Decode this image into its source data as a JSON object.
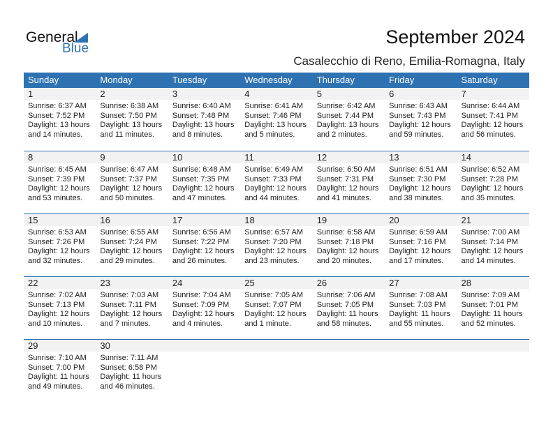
{
  "logo": {
    "general": "General",
    "blue": "Blue"
  },
  "title": "September 2024",
  "location": "Casalecchio di Reno, Emilia-Romagna, Italy",
  "colors": {
    "header": "#2e72b2",
    "accent": "#2e74b5",
    "date_band": "#f2f2f2"
  },
  "weekdays": [
    "Sunday",
    "Monday",
    "Tuesday",
    "Wednesday",
    "Thursday",
    "Friday",
    "Saturday"
  ],
  "days": [
    {
      "day": "1",
      "sunrise": "Sunrise: 6:37 AM",
      "sunset": "Sunset: 7:52 PM",
      "daylight1": "Daylight: 13 hours",
      "daylight2": "and 14 minutes."
    },
    {
      "day": "2",
      "sunrise": "Sunrise: 6:38 AM",
      "sunset": "Sunset: 7:50 PM",
      "daylight1": "Daylight: 13 hours",
      "daylight2": "and 11 minutes."
    },
    {
      "day": "3",
      "sunrise": "Sunrise: 6:40 AM",
      "sunset": "Sunset: 7:48 PM",
      "daylight1": "Daylight: 13 hours",
      "daylight2": "and 8 minutes."
    },
    {
      "day": "4",
      "sunrise": "Sunrise: 6:41 AM",
      "sunset": "Sunset: 7:46 PM",
      "daylight1": "Daylight: 13 hours",
      "daylight2": "and 5 minutes."
    },
    {
      "day": "5",
      "sunrise": "Sunrise: 6:42 AM",
      "sunset": "Sunset: 7:44 PM",
      "daylight1": "Daylight: 13 hours",
      "daylight2": "and 2 minutes."
    },
    {
      "day": "6",
      "sunrise": "Sunrise: 6:43 AM",
      "sunset": "Sunset: 7:43 PM",
      "daylight1": "Daylight: 12 hours",
      "daylight2": "and 59 minutes."
    },
    {
      "day": "7",
      "sunrise": "Sunrise: 6:44 AM",
      "sunset": "Sunset: 7:41 PM",
      "daylight1": "Daylight: 12 hours",
      "daylight2": "and 56 minutes."
    },
    {
      "day": "8",
      "sunrise": "Sunrise: 6:45 AM",
      "sunset": "Sunset: 7:39 PM",
      "daylight1": "Daylight: 12 hours",
      "daylight2": "and 53 minutes."
    },
    {
      "day": "9",
      "sunrise": "Sunrise: 6:47 AM",
      "sunset": "Sunset: 7:37 PM",
      "daylight1": "Daylight: 12 hours",
      "daylight2": "and 50 minutes."
    },
    {
      "day": "10",
      "sunrise": "Sunrise: 6:48 AM",
      "sunset": "Sunset: 7:35 PM",
      "daylight1": "Daylight: 12 hours",
      "daylight2": "and 47 minutes."
    },
    {
      "day": "11",
      "sunrise": "Sunrise: 6:49 AM",
      "sunset": "Sunset: 7:33 PM",
      "daylight1": "Daylight: 12 hours",
      "daylight2": "and 44 minutes."
    },
    {
      "day": "12",
      "sunrise": "Sunrise: 6:50 AM",
      "sunset": "Sunset: 7:31 PM",
      "daylight1": "Daylight: 12 hours",
      "daylight2": "and 41 minutes."
    },
    {
      "day": "13",
      "sunrise": "Sunrise: 6:51 AM",
      "sunset": "Sunset: 7:30 PM",
      "daylight1": "Daylight: 12 hours",
      "daylight2": "and 38 minutes."
    },
    {
      "day": "14",
      "sunrise": "Sunrise: 6:52 AM",
      "sunset": "Sunset: 7:28 PM",
      "daylight1": "Daylight: 12 hours",
      "daylight2": "and 35 minutes."
    },
    {
      "day": "15",
      "sunrise": "Sunrise: 6:53 AM",
      "sunset": "Sunset: 7:26 PM",
      "daylight1": "Daylight: 12 hours",
      "daylight2": "and 32 minutes."
    },
    {
      "day": "16",
      "sunrise": "Sunrise: 6:55 AM",
      "sunset": "Sunset: 7:24 PM",
      "daylight1": "Daylight: 12 hours",
      "daylight2": "and 29 minutes."
    },
    {
      "day": "17",
      "sunrise": "Sunrise: 6:56 AM",
      "sunset": "Sunset: 7:22 PM",
      "daylight1": "Daylight: 12 hours",
      "daylight2": "and 26 minutes."
    },
    {
      "day": "18",
      "sunrise": "Sunrise: 6:57 AM",
      "sunset": "Sunset: 7:20 PM",
      "daylight1": "Daylight: 12 hours",
      "daylight2": "and 23 minutes."
    },
    {
      "day": "19",
      "sunrise": "Sunrise: 6:58 AM",
      "sunset": "Sunset: 7:18 PM",
      "daylight1": "Daylight: 12 hours",
      "daylight2": "and 20 minutes."
    },
    {
      "day": "20",
      "sunrise": "Sunrise: 6:59 AM",
      "sunset": "Sunset: 7:16 PM",
      "daylight1": "Daylight: 12 hours",
      "daylight2": "and 17 minutes."
    },
    {
      "day": "21",
      "sunrise": "Sunrise: 7:00 AM",
      "sunset": "Sunset: 7:14 PM",
      "daylight1": "Daylight: 12 hours",
      "daylight2": "and 14 minutes."
    },
    {
      "day": "22",
      "sunrise": "Sunrise: 7:02 AM",
      "sunset": "Sunset: 7:13 PM",
      "daylight1": "Daylight: 12 hours",
      "daylight2": "and 10 minutes."
    },
    {
      "day": "23",
      "sunrise": "Sunrise: 7:03 AM",
      "sunset": "Sunset: 7:11 PM",
      "daylight1": "Daylight: 12 hours",
      "daylight2": "and 7 minutes."
    },
    {
      "day": "24",
      "sunrise": "Sunrise: 7:04 AM",
      "sunset": "Sunset: 7:09 PM",
      "daylight1": "Daylight: 12 hours",
      "daylight2": "and 4 minutes."
    },
    {
      "day": "25",
      "sunrise": "Sunrise: 7:05 AM",
      "sunset": "Sunset: 7:07 PM",
      "daylight1": "Daylight: 12 hours",
      "daylight2": "and 1 minute."
    },
    {
      "day": "26",
      "sunrise": "Sunrise: 7:06 AM",
      "sunset": "Sunset: 7:05 PM",
      "daylight1": "Daylight: 11 hours",
      "daylight2": "and 58 minutes."
    },
    {
      "day": "27",
      "sunrise": "Sunrise: 7:08 AM",
      "sunset": "Sunset: 7:03 PM",
      "daylight1": "Daylight: 11 hours",
      "daylight2": "and 55 minutes."
    },
    {
      "day": "28",
      "sunrise": "Sunrise: 7:09 AM",
      "sunset": "Sunset: 7:01 PM",
      "daylight1": "Daylight: 11 hours",
      "daylight2": "and 52 minutes."
    },
    {
      "day": "29",
      "sunrise": "Sunrise: 7:10 AM",
      "sunset": "Sunset: 7:00 PM",
      "daylight1": "Daylight: 11 hours",
      "daylight2": "and 49 minutes."
    },
    {
      "day": "30",
      "sunrise": "Sunrise: 7:11 AM",
      "sunset": "Sunset: 6:58 PM",
      "daylight1": "Daylight: 11 hours",
      "daylight2": "and 46 minutes."
    }
  ]
}
